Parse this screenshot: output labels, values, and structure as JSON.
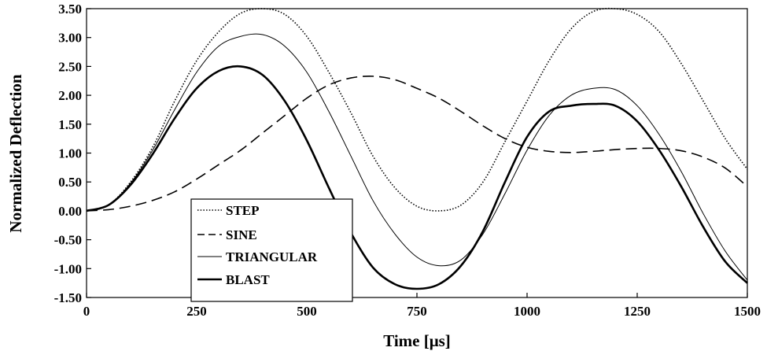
{
  "chart_data": {
    "type": "line",
    "xlabel": "Time [μs]",
    "ylabel": "Normalized Deflection",
    "xlim": [
      0,
      1500
    ],
    "ylim": [
      -1.5,
      3.5
    ],
    "x_ticks": [
      "0",
      "250",
      "500",
      "750",
      "1000",
      "1250",
      "1500"
    ],
    "y_ticks": [
      "3.50",
      "3.00",
      "2.50",
      "2.00",
      "1.50",
      "1.00",
      "0.50",
      "0.00",
      "-0.50",
      "-1.00",
      "-1.50"
    ],
    "grid": false,
    "legend_position": "bottom-left",
    "series": [
      {
        "name": "STEP",
        "style": "dotted",
        "x": [
          0,
          50,
          100,
          150,
          200,
          250,
          300,
          350,
          400,
          450,
          500,
          550,
          600,
          650,
          700,
          750,
          800,
          850,
          900,
          950,
          1000,
          1050,
          1100,
          1150,
          1200,
          1250,
          1300,
          1350,
          1400,
          1450,
          1500
        ],
        "y": [
          0.0,
          0.1,
          0.5,
          1.1,
          1.9,
          2.6,
          3.1,
          3.42,
          3.5,
          3.4,
          3.02,
          2.4,
          1.7,
          0.95,
          0.4,
          0.08,
          0.0,
          0.1,
          0.5,
          1.2,
          1.9,
          2.6,
          3.15,
          3.45,
          3.5,
          3.4,
          3.1,
          2.55,
          1.9,
          1.25,
          0.72
        ]
      },
      {
        "name": "SINE",
        "style": "dashed",
        "x": [
          0,
          50,
          100,
          150,
          200,
          250,
          300,
          350,
          400,
          450,
          500,
          550,
          600,
          650,
          700,
          750,
          800,
          850,
          900,
          950,
          1000,
          1050,
          1100,
          1150,
          1200,
          1250,
          1300,
          1350,
          1400,
          1450,
          1500
        ],
        "y": [
          0.0,
          0.02,
          0.08,
          0.18,
          0.33,
          0.55,
          0.8,
          1.05,
          1.35,
          1.65,
          1.95,
          2.18,
          2.3,
          2.33,
          2.27,
          2.12,
          1.95,
          1.72,
          1.47,
          1.25,
          1.1,
          1.03,
          1.01,
          1.03,
          1.06,
          1.08,
          1.08,
          1.04,
          0.93,
          0.74,
          0.42
        ]
      },
      {
        "name": "TRIANGULAR",
        "style": "thin",
        "x": [
          0,
          50,
          100,
          150,
          200,
          250,
          300,
          350,
          400,
          450,
          500,
          550,
          600,
          650,
          700,
          750,
          800,
          850,
          900,
          950,
          1000,
          1050,
          1100,
          1150,
          1200,
          1250,
          1300,
          1350,
          1400,
          1450,
          1500
        ],
        "y": [
          0.0,
          0.1,
          0.48,
          1.05,
          1.75,
          2.4,
          2.85,
          3.02,
          3.05,
          2.85,
          2.4,
          1.72,
          0.95,
          0.18,
          -0.4,
          -0.8,
          -0.95,
          -0.85,
          -0.4,
          0.3,
          1.05,
          1.65,
          2.0,
          2.12,
          2.1,
          1.82,
          1.32,
          0.68,
          -0.05,
          -0.7,
          -1.2
        ]
      },
      {
        "name": "BLAST",
        "style": "thick",
        "x": [
          0,
          50,
          100,
          150,
          200,
          250,
          300,
          350,
          400,
          450,
          500,
          550,
          600,
          650,
          700,
          750,
          800,
          850,
          900,
          950,
          1000,
          1050,
          1100,
          1150,
          1200,
          1250,
          1300,
          1350,
          1400,
          1450,
          1500
        ],
        "y": [
          0.0,
          0.1,
          0.45,
          0.98,
          1.6,
          2.12,
          2.42,
          2.5,
          2.35,
          1.9,
          1.22,
          0.4,
          -0.38,
          -0.98,
          -1.27,
          -1.35,
          -1.27,
          -0.95,
          -0.35,
          0.5,
          1.28,
          1.72,
          1.82,
          1.85,
          1.82,
          1.55,
          1.05,
          0.42,
          -0.28,
          -0.88,
          -1.25
        ]
      }
    ]
  }
}
